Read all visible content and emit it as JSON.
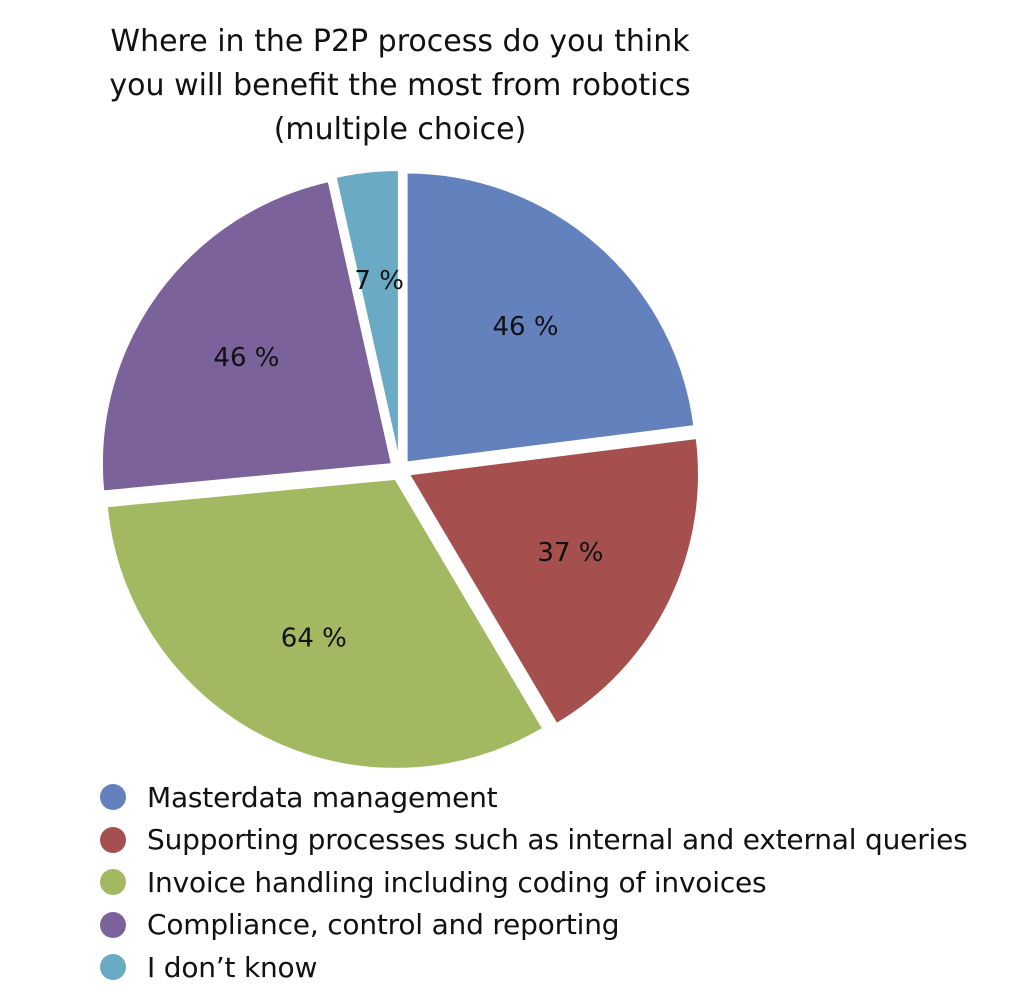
{
  "chart_data": {
    "type": "pie",
    "title_lines": [
      "Where in the P2P process do you think",
      "you will benefit the most from robotics",
      "(multiple choice)"
    ],
    "unit": "%",
    "slices": [
      {
        "name": "Masterdata management",
        "value": 46,
        "label": "46 %",
        "color": "#6281bd"
      },
      {
        "name": "Supporting processes such as internal and external queries",
        "value": 37,
        "label": "37 %",
        "color": "#a54f4e"
      },
      {
        "name": "Invoice handling including coding of invoices",
        "value": 64,
        "label": "64 %",
        "color": "#a2b961"
      },
      {
        "name": "Compliance, control and reporting",
        "value": 46,
        "label": "46 %",
        "color": "#7b629b"
      },
      {
        "name": "I don’t know",
        "value": 7,
        "label": "7 %",
        "color": "#6aaac4"
      }
    ],
    "exploded": true,
    "legend_position": "bottom"
  }
}
